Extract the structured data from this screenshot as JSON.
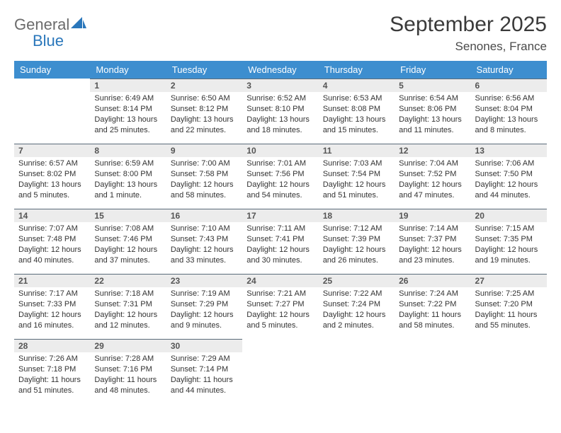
{
  "brand": {
    "part1": "General",
    "part2": "Blue"
  },
  "title": {
    "month": "September 2025",
    "location": "Senones, France"
  },
  "colors": {
    "header_bg": "#3d8ecf",
    "header_text": "#ffffff",
    "daynum_bg": "#ececec",
    "daynum_border": "#5a6b7a",
    "text": "#333333",
    "brand_gray": "#6b6b6b",
    "brand_blue": "#2a77bb"
  },
  "weekdays": [
    "Sunday",
    "Monday",
    "Tuesday",
    "Wednesday",
    "Thursday",
    "Friday",
    "Saturday"
  ],
  "weeks": [
    [
      null,
      {
        "n": "1",
        "sr": "Sunrise: 6:49 AM",
        "ss": "Sunset: 8:14 PM",
        "d1": "Daylight: 13 hours",
        "d2": "and 25 minutes."
      },
      {
        "n": "2",
        "sr": "Sunrise: 6:50 AM",
        "ss": "Sunset: 8:12 PM",
        "d1": "Daylight: 13 hours",
        "d2": "and 22 minutes."
      },
      {
        "n": "3",
        "sr": "Sunrise: 6:52 AM",
        "ss": "Sunset: 8:10 PM",
        "d1": "Daylight: 13 hours",
        "d2": "and 18 minutes."
      },
      {
        "n": "4",
        "sr": "Sunrise: 6:53 AM",
        "ss": "Sunset: 8:08 PM",
        "d1": "Daylight: 13 hours",
        "d2": "and 15 minutes."
      },
      {
        "n": "5",
        "sr": "Sunrise: 6:54 AM",
        "ss": "Sunset: 8:06 PM",
        "d1": "Daylight: 13 hours",
        "d2": "and 11 minutes."
      },
      {
        "n": "6",
        "sr": "Sunrise: 6:56 AM",
        "ss": "Sunset: 8:04 PM",
        "d1": "Daylight: 13 hours",
        "d2": "and 8 minutes."
      }
    ],
    [
      {
        "n": "7",
        "sr": "Sunrise: 6:57 AM",
        "ss": "Sunset: 8:02 PM",
        "d1": "Daylight: 13 hours",
        "d2": "and 5 minutes."
      },
      {
        "n": "8",
        "sr": "Sunrise: 6:59 AM",
        "ss": "Sunset: 8:00 PM",
        "d1": "Daylight: 13 hours",
        "d2": "and 1 minute."
      },
      {
        "n": "9",
        "sr": "Sunrise: 7:00 AM",
        "ss": "Sunset: 7:58 PM",
        "d1": "Daylight: 12 hours",
        "d2": "and 58 minutes."
      },
      {
        "n": "10",
        "sr": "Sunrise: 7:01 AM",
        "ss": "Sunset: 7:56 PM",
        "d1": "Daylight: 12 hours",
        "d2": "and 54 minutes."
      },
      {
        "n": "11",
        "sr": "Sunrise: 7:03 AM",
        "ss": "Sunset: 7:54 PM",
        "d1": "Daylight: 12 hours",
        "d2": "and 51 minutes."
      },
      {
        "n": "12",
        "sr": "Sunrise: 7:04 AM",
        "ss": "Sunset: 7:52 PM",
        "d1": "Daylight: 12 hours",
        "d2": "and 47 minutes."
      },
      {
        "n": "13",
        "sr": "Sunrise: 7:06 AM",
        "ss": "Sunset: 7:50 PM",
        "d1": "Daylight: 12 hours",
        "d2": "and 44 minutes."
      }
    ],
    [
      {
        "n": "14",
        "sr": "Sunrise: 7:07 AM",
        "ss": "Sunset: 7:48 PM",
        "d1": "Daylight: 12 hours",
        "d2": "and 40 minutes."
      },
      {
        "n": "15",
        "sr": "Sunrise: 7:08 AM",
        "ss": "Sunset: 7:46 PM",
        "d1": "Daylight: 12 hours",
        "d2": "and 37 minutes."
      },
      {
        "n": "16",
        "sr": "Sunrise: 7:10 AM",
        "ss": "Sunset: 7:43 PM",
        "d1": "Daylight: 12 hours",
        "d2": "and 33 minutes."
      },
      {
        "n": "17",
        "sr": "Sunrise: 7:11 AM",
        "ss": "Sunset: 7:41 PM",
        "d1": "Daylight: 12 hours",
        "d2": "and 30 minutes."
      },
      {
        "n": "18",
        "sr": "Sunrise: 7:12 AM",
        "ss": "Sunset: 7:39 PM",
        "d1": "Daylight: 12 hours",
        "d2": "and 26 minutes."
      },
      {
        "n": "19",
        "sr": "Sunrise: 7:14 AM",
        "ss": "Sunset: 7:37 PM",
        "d1": "Daylight: 12 hours",
        "d2": "and 23 minutes."
      },
      {
        "n": "20",
        "sr": "Sunrise: 7:15 AM",
        "ss": "Sunset: 7:35 PM",
        "d1": "Daylight: 12 hours",
        "d2": "and 19 minutes."
      }
    ],
    [
      {
        "n": "21",
        "sr": "Sunrise: 7:17 AM",
        "ss": "Sunset: 7:33 PM",
        "d1": "Daylight: 12 hours",
        "d2": "and 16 minutes."
      },
      {
        "n": "22",
        "sr": "Sunrise: 7:18 AM",
        "ss": "Sunset: 7:31 PM",
        "d1": "Daylight: 12 hours",
        "d2": "and 12 minutes."
      },
      {
        "n": "23",
        "sr": "Sunrise: 7:19 AM",
        "ss": "Sunset: 7:29 PM",
        "d1": "Daylight: 12 hours",
        "d2": "and 9 minutes."
      },
      {
        "n": "24",
        "sr": "Sunrise: 7:21 AM",
        "ss": "Sunset: 7:27 PM",
        "d1": "Daylight: 12 hours",
        "d2": "and 5 minutes."
      },
      {
        "n": "25",
        "sr": "Sunrise: 7:22 AM",
        "ss": "Sunset: 7:24 PM",
        "d1": "Daylight: 12 hours",
        "d2": "and 2 minutes."
      },
      {
        "n": "26",
        "sr": "Sunrise: 7:24 AM",
        "ss": "Sunset: 7:22 PM",
        "d1": "Daylight: 11 hours",
        "d2": "and 58 minutes."
      },
      {
        "n": "27",
        "sr": "Sunrise: 7:25 AM",
        "ss": "Sunset: 7:20 PM",
        "d1": "Daylight: 11 hours",
        "d2": "and 55 minutes."
      }
    ],
    [
      {
        "n": "28",
        "sr": "Sunrise: 7:26 AM",
        "ss": "Sunset: 7:18 PM",
        "d1": "Daylight: 11 hours",
        "d2": "and 51 minutes."
      },
      {
        "n": "29",
        "sr": "Sunrise: 7:28 AM",
        "ss": "Sunset: 7:16 PM",
        "d1": "Daylight: 11 hours",
        "d2": "and 48 minutes."
      },
      {
        "n": "30",
        "sr": "Sunrise: 7:29 AM",
        "ss": "Sunset: 7:14 PM",
        "d1": "Daylight: 11 hours",
        "d2": "and 44 minutes."
      },
      null,
      null,
      null,
      null
    ]
  ]
}
